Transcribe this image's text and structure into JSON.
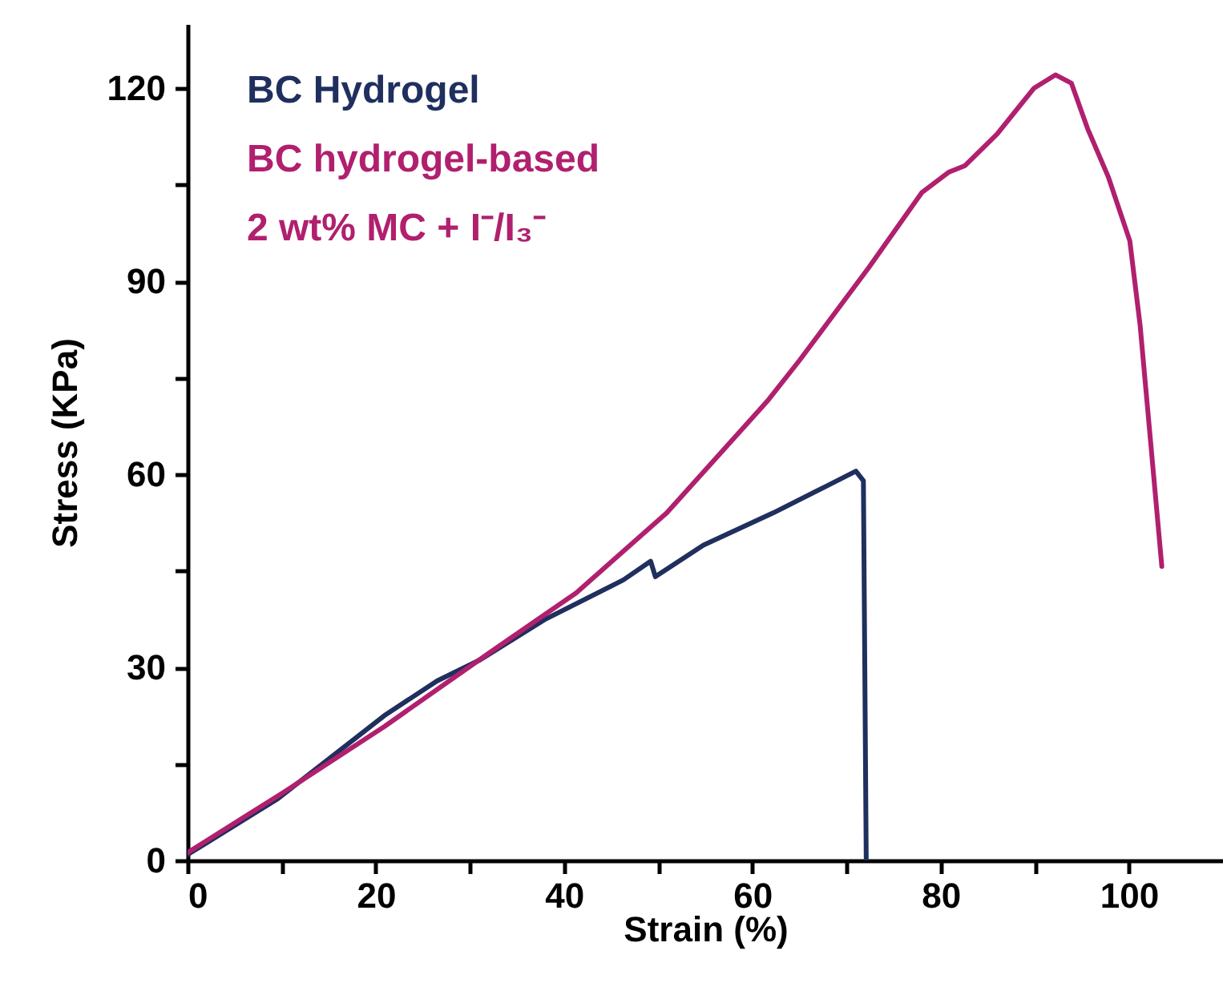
{
  "chart_data": {
    "type": "line",
    "xlabel": "Strain (%)",
    "ylabel": "Stress (KPa)",
    "xlim": [
      0,
      110
    ],
    "ylim": [
      0,
      130
    ],
    "xticks": [
      0,
      {
        "value": 10,
        "label": null
      },
      20,
      {
        "value": 30,
        "label": null
      },
      40,
      {
        "value": 50,
        "label": null
      },
      60,
      {
        "value": 70,
        "label": null
      },
      80,
      {
        "value": 90,
        "label": null
      },
      100
    ],
    "yticks": [
      0,
      {
        "value": 15,
        "label": null
      },
      30,
      {
        "value": 45,
        "label": null
      },
      60,
      {
        "value": 75,
        "label": null
      },
      90,
      {
        "value": 105,
        "label": null
      },
      120
    ],
    "legend": "top left",
    "grid": false,
    "marker": "none",
    "line_style": "solid",
    "series": [
      {
        "name": "BC Hydrogel",
        "color": "#1f2f5e",
        "x": [
          0,
          9.6,
          20.9,
          26.5,
          31.1,
          37.9,
          46.3,
          49.2,
          49.7,
          54.8,
          62.2,
          67.9,
          71.0,
          71.8,
          72.1
        ],
        "values": [
          0.9,
          9.6,
          22.5,
          27.9,
          31.2,
          37.4,
          43.6,
          46.5,
          44.1,
          49.0,
          54.0,
          58.2,
          60.5,
          59.0,
          0
        ]
      },
      {
        "name": "BC hydrogel-based\n2 wt% MC + I⁻/I₃⁻",
        "color": "#b0206e",
        "x": [
          0,
          10.1,
          20.9,
          32.2,
          41.3,
          50.9,
          61.6,
          65.0,
          72.4,
          78.0,
          80.9,
          82.6,
          86.0,
          89.9,
          92.2,
          93.9,
          95.6,
          97.8,
          100.1,
          101.2,
          103.5
        ],
        "values": [
          1.2,
          10.5,
          20.8,
          32.4,
          41.6,
          54.0,
          71.4,
          77.7,
          92.2,
          103.8,
          107.0,
          108.0,
          112.9,
          120.0,
          122.1,
          120.8,
          113.8,
          106.3,
          96.3,
          83.1,
          45.7
        ]
      }
    ]
  }
}
